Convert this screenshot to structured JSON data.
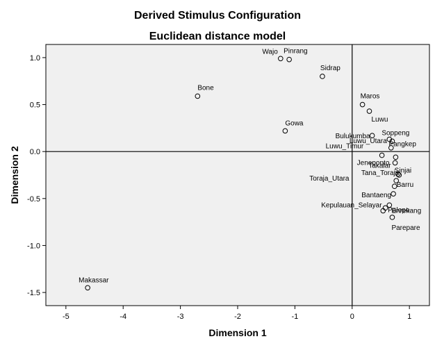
{
  "chart_data": {
    "type": "scatter",
    "title": "Derived Stimulus Configuration",
    "subtitle": "Euclidean distance model",
    "xlabel": "Dimension 1",
    "ylabel": "Dimension 2",
    "xlim": [
      -5.35,
      1.35
    ],
    "ylim": [
      -1.64,
      1.14
    ],
    "xticks": [
      -5,
      -4,
      -3,
      -2,
      -1,
      0,
      1
    ],
    "yticks": [
      -1.5,
      -1.0,
      -0.5,
      0.0,
      0.5,
      1.0
    ],
    "ytick_labels": [
      "-1.5",
      "-1.0",
      "-0.5",
      "0.0",
      "0.5",
      "1.0"
    ],
    "xtick_labels": [
      "-5",
      "-4",
      "-3",
      "-2",
      "-1",
      "0",
      "1"
    ],
    "reference_lines": {
      "x": 0,
      "y": 0
    },
    "grid": false,
    "colors": {
      "plot_bg": "#f0f0f0",
      "marker": "#000000"
    },
    "points": [
      {
        "label": "Wajo",
        "x": -1.25,
        "y": 0.99
      },
      {
        "label": "Pinrang",
        "x": -1.1,
        "y": 0.98
      },
      {
        "label": "Sidrap",
        "x": -0.52,
        "y": 0.8
      },
      {
        "label": "Bone",
        "x": -2.7,
        "y": 0.59
      },
      {
        "label": "Maros",
        "x": 0.18,
        "y": 0.5
      },
      {
        "label": "Luwu",
        "x": 0.3,
        "y": 0.43
      },
      {
        "label": "Gowa",
        "x": -1.17,
        "y": 0.22
      },
      {
        "label": "Bulukumba",
        "x": 0.35,
        "y": 0.17
      },
      {
        "label": "Soppeng",
        "x": 0.65,
        "y": 0.13
      },
      {
        "label": "Pangkep",
        "x": 0.7,
        "y": 0.11
      },
      {
        "label": "Luwu_Timur",
        "x": 0.52,
        "y": -0.04
      },
      {
        "label": "Luwu_Utara",
        "x": 0.68,
        "y": 0.04
      },
      {
        "label": "Jeneponto",
        "x": 0.76,
        "y": -0.06
      },
      {
        "label": "Takalar",
        "x": 0.75,
        "y": -0.12
      },
      {
        "label": "Sinjai",
        "x": 0.8,
        "y": -0.24
      },
      {
        "label": "Tana_Toraja",
        "x": 0.82,
        "y": -0.25
      },
      {
        "label": "Toraja_Utara",
        "x": 0.77,
        "y": -0.31
      },
      {
        "label": "Barru",
        "x": 0.74,
        "y": -0.37
      },
      {
        "label": "Bantaeng",
        "x": 0.72,
        "y": -0.45
      },
      {
        "label": "Enrekang",
        "x": 0.65,
        "y": -0.57
      },
      {
        "label": "Kepulauan_Selayar",
        "x": 0.58,
        "y": -0.6
      },
      {
        "label": "Palopo",
        "x": 0.54,
        "y": -0.63
      },
      {
        "label": "Parepare",
        "x": 0.7,
        "y": -0.7
      },
      {
        "label": "Makassar",
        "x": -4.62,
        "y": -1.45
      }
    ]
  }
}
